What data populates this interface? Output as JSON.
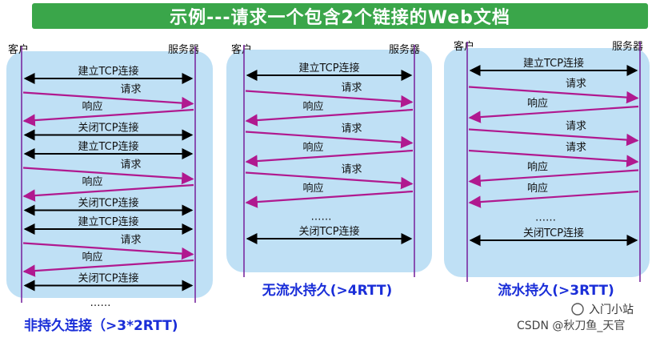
{
  "title": "示例---请求一个包含2个链接的Web文档",
  "client_label": "客户",
  "server_label": "服务器",
  "colors": {
    "banner": "#3aa64a",
    "panel": "#bfe0f5",
    "arrow_black": "#000000",
    "arrow_purple": "#b0198f",
    "caption": "#1a2ed8"
  },
  "panels": [
    {
      "caption": "非持久连接（>3*2RTT)",
      "rows": [
        {
          "label": "建立TCP连接",
          "kind": "both"
        },
        {
          "label": "请求",
          "kind": "to_server"
        },
        {
          "label": "响应",
          "kind": "to_client"
        },
        {
          "label": "关闭TCP连接",
          "kind": "both"
        },
        {
          "label": "建立TCP连接",
          "kind": "both"
        },
        {
          "label": "请求",
          "kind": "to_server"
        },
        {
          "label": "响应",
          "kind": "to_client"
        },
        {
          "label": "关闭TCP连接",
          "kind": "both"
        },
        {
          "label": "建立TCP连接",
          "kind": "both"
        },
        {
          "label": "请求",
          "kind": "to_server"
        },
        {
          "label": "响应",
          "kind": "to_client"
        },
        {
          "label": "关闭TCP连接",
          "kind": "both"
        },
        {
          "label": "……",
          "kind": "text"
        }
      ]
    },
    {
      "caption": "无流水持久(>4RTT)",
      "rows": [
        {
          "label": "建立TCP连接",
          "kind": "both"
        },
        {
          "label": "请求",
          "kind": "to_server"
        },
        {
          "label": "响应",
          "kind": "to_client"
        },
        {
          "label": "请求",
          "kind": "to_server"
        },
        {
          "label": "响应",
          "kind": "to_client"
        },
        {
          "label": "请求",
          "kind": "to_server"
        },
        {
          "label": "响应",
          "kind": "to_client"
        },
        {
          "label": "……",
          "kind": "text"
        },
        {
          "label": "关闭TCP连接",
          "kind": "both"
        }
      ]
    },
    {
      "caption": "流水持久(>3RTT)",
      "rows": [
        {
          "label": "建立TCP连接",
          "kind": "both"
        },
        {
          "label": "请求",
          "kind": "to_server"
        },
        {
          "label": "响应",
          "kind": "to_client"
        },
        {
          "label": "请求",
          "kind": "to_server"
        },
        {
          "label": "请求",
          "kind": "to_server"
        },
        {
          "label": "响应",
          "kind": "to_client"
        },
        {
          "label": "响应",
          "kind": "to_client"
        },
        {
          "label": "……",
          "kind": "text"
        },
        {
          "label": "关闭TCP连接",
          "kind": "both"
        }
      ]
    }
  ],
  "watermark": {
    "brand": "入门小站",
    "credit": "CSDN @秋刀鱼_天官"
  }
}
